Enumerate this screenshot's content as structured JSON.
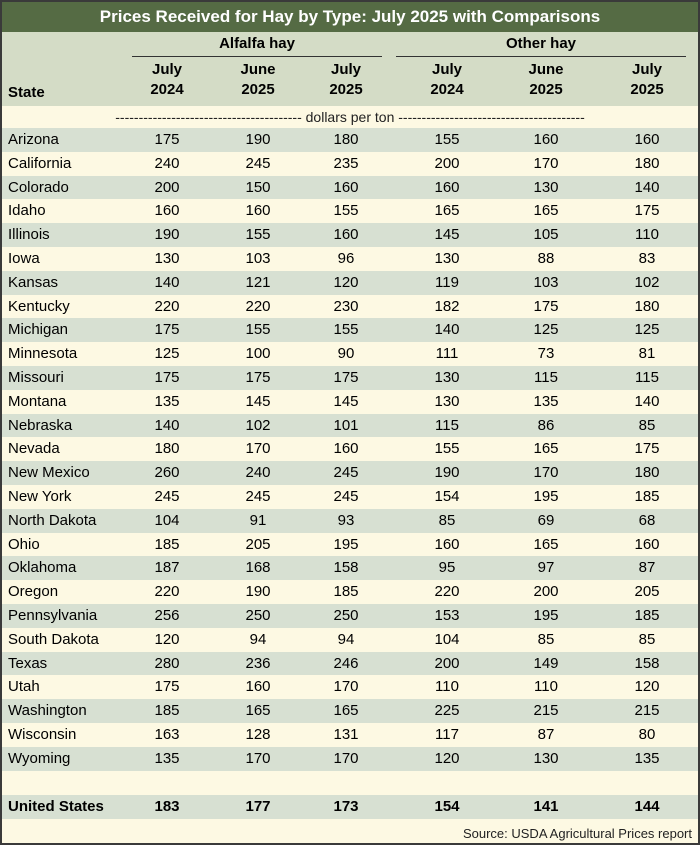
{
  "chart_data": {
    "type": "table",
    "title": "Prices Received for Hay by Type: July 2025 with Comparisons",
    "groups": [
      "Alfalfa hay",
      "Other hay"
    ],
    "state_header": "State",
    "columns": [
      {
        "line1": "July",
        "line2": "2024"
      },
      {
        "line1": "June",
        "line2": "2025"
      },
      {
        "line1": "July",
        "line2": "2025"
      },
      {
        "line1": "July",
        "line2": "2024"
      },
      {
        "line1": "June",
        "line2": "2025"
      },
      {
        "line1": "July",
        "line2": "2025"
      }
    ],
    "units_label": "---------------------------------------- dollars per ton ----------------------------------------",
    "rows": [
      {
        "state": "Arizona",
        "values": [
          175,
          190,
          180,
          155,
          160,
          160
        ]
      },
      {
        "state": "California",
        "values": [
          240,
          245,
          235,
          200,
          170,
          180
        ]
      },
      {
        "state": "Colorado",
        "values": [
          200,
          150,
          160,
          160,
          130,
          140
        ]
      },
      {
        "state": "Idaho",
        "values": [
          160,
          160,
          155,
          165,
          165,
          175
        ]
      },
      {
        "state": "Illinois",
        "values": [
          190,
          155,
          160,
          145,
          105,
          110
        ]
      },
      {
        "state": "Iowa",
        "values": [
          130,
          103,
          96,
          130,
          88,
          83
        ]
      },
      {
        "state": "Kansas",
        "values": [
          140,
          121,
          120,
          119,
          103,
          102
        ]
      },
      {
        "state": "Kentucky",
        "values": [
          220,
          220,
          230,
          182,
          175,
          180
        ]
      },
      {
        "state": "Michigan",
        "values": [
          175,
          155,
          155,
          140,
          125,
          125
        ]
      },
      {
        "state": "Minnesota",
        "values": [
          125,
          100,
          90,
          111,
          73,
          81
        ]
      },
      {
        "state": "Missouri",
        "values": [
          175,
          175,
          175,
          130,
          115,
          115
        ]
      },
      {
        "state": "Montana",
        "values": [
          135,
          145,
          145,
          130,
          135,
          140
        ]
      },
      {
        "state": "Nebraska",
        "values": [
          140,
          102,
          101,
          115,
          86,
          85
        ]
      },
      {
        "state": "Nevada",
        "values": [
          180,
          170,
          160,
          155,
          165,
          175
        ]
      },
      {
        "state": "New Mexico",
        "values": [
          260,
          240,
          245,
          190,
          170,
          180
        ]
      },
      {
        "state": "New York",
        "values": [
          245,
          245,
          245,
          154,
          195,
          185
        ]
      },
      {
        "state": "North Dakota",
        "values": [
          104,
          91,
          93,
          85,
          69,
          68
        ]
      },
      {
        "state": "Ohio",
        "values": [
          185,
          205,
          195,
          160,
          165,
          160
        ]
      },
      {
        "state": "Oklahoma",
        "values": [
          187,
          168,
          158,
          95,
          97,
          87
        ]
      },
      {
        "state": "Oregon",
        "values": [
          220,
          190,
          185,
          220,
          200,
          205
        ]
      },
      {
        "state": "Pennsylvania",
        "values": [
          256,
          250,
          250,
          153,
          195,
          185
        ]
      },
      {
        "state": "South Dakota",
        "values": [
          120,
          94,
          94,
          104,
          85,
          85
        ]
      },
      {
        "state": "Texas",
        "values": [
          280,
          236,
          246,
          200,
          149,
          158
        ]
      },
      {
        "state": "Utah",
        "values": [
          175,
          160,
          170,
          110,
          110,
          120
        ]
      },
      {
        "state": "Washington",
        "values": [
          185,
          165,
          165,
          225,
          215,
          215
        ]
      },
      {
        "state": "Wisconsin",
        "values": [
          163,
          128,
          131,
          117,
          87,
          80
        ]
      },
      {
        "state": "Wyoming",
        "values": [
          135,
          170,
          170,
          120,
          130,
          135
        ]
      }
    ],
    "total": {
      "state": "United States",
      "values": [
        183,
        177,
        173,
        154,
        141,
        144
      ]
    },
    "source": "Source: USDA Agricultural Prices report",
    "colors": {
      "title_bg": "#556b44",
      "header_bg": "#d4dcc6",
      "shade_row": "#d7e0d2",
      "plain_row": "#fdf9e3"
    }
  }
}
